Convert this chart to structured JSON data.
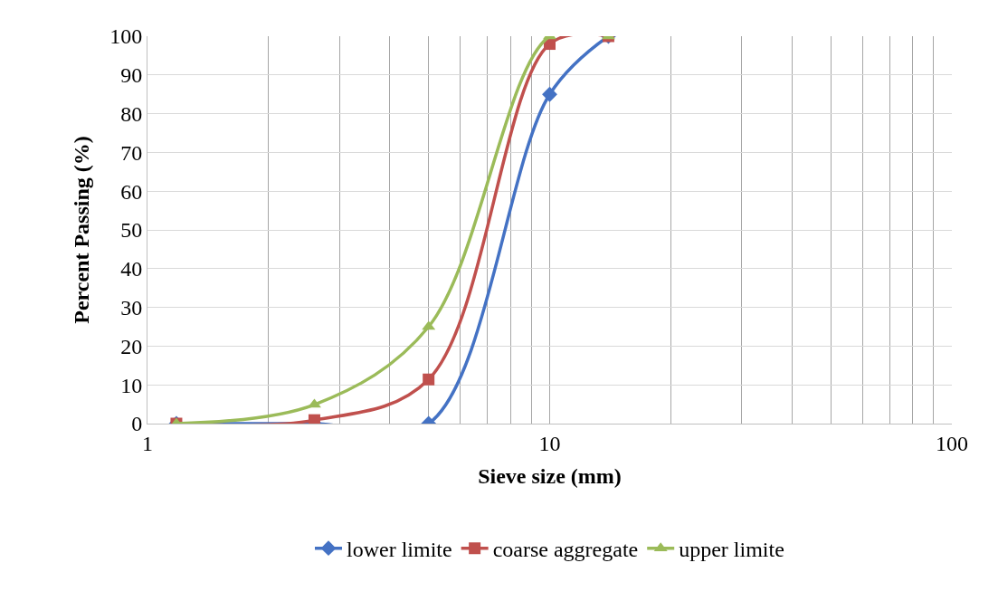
{
  "chart_data": {
    "type": "line",
    "xlabel": "Sieve size (mm)",
    "ylabel": "Percent Passing (%)",
    "log": "x",
    "xlim": [
      1,
      100
    ],
    "ylim": [
      0,
      100
    ],
    "xticks": [
      1,
      {
        "value": 2,
        "label": null
      },
      {
        "value": 3,
        "label": null
      },
      {
        "value": 4,
        "label": null
      },
      {
        "value": 5,
        "label": null
      },
      {
        "value": 6,
        "label": null
      },
      {
        "value": 7,
        "label": null
      },
      {
        "value": 8,
        "label": null
      },
      {
        "value": 9,
        "label": null
      },
      10,
      {
        "value": 20,
        "label": null
      },
      {
        "value": 30,
        "label": null
      },
      {
        "value": 40,
        "label": null
      },
      {
        "value": 50,
        "label": null
      },
      {
        "value": 60,
        "label": null
      },
      {
        "value": 70,
        "label": null
      },
      {
        "value": 80,
        "label": null
      },
      {
        "value": 90,
        "label": null
      },
      100
    ],
    "yticks": [
      0,
      10,
      20,
      30,
      40,
      50,
      60,
      70,
      80,
      90,
      100
    ],
    "grid": true,
    "legend": "bottom",
    "x": [
      1.18,
      2.6,
      5,
      10,
      14
    ],
    "series": [
      {
        "name": "lower limite",
        "color": "#4472c4",
        "marker": "diamond",
        "values": [
          0,
          0,
          0,
          85,
          100
        ]
      },
      {
        "name": "coarse aggregate",
        "color": "#c0504d",
        "marker": "square",
        "values": [
          0,
          0.9,
          11.4,
          98,
          100
        ]
      },
      {
        "name": "upper limite",
        "color": "#9bbb59",
        "marker": "triangle",
        "values": [
          0,
          4.9,
          25,
          100,
          100
        ]
      }
    ]
  }
}
